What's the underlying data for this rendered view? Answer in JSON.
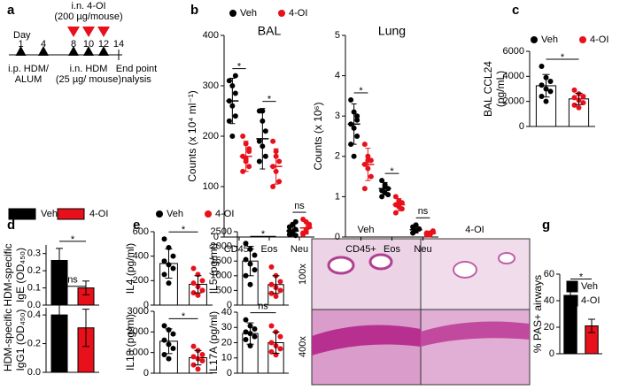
{
  "panel_labels": [
    "a",
    "b",
    "c",
    "d",
    "e",
    "f",
    "g"
  ],
  "timeline": {
    "day_label": "Day",
    "days": [
      1,
      4,
      8,
      10,
      12,
      14
    ],
    "treatment_top": [
      "i.n. 4-OI",
      "(200 µg/mouse)"
    ],
    "sensitization": [
      "i.p. HDM/",
      "ALUM"
    ],
    "challenge": [
      "i.n. HDM",
      "(25 µg/ mouse)"
    ],
    "endpoint": [
      "End point",
      "nalysis"
    ]
  },
  "histology": {
    "columns": [
      "Veh",
      "4-OI"
    ],
    "rows": [
      "100x",
      "400x"
    ]
  },
  "chart_data": [
    {
      "type": "dot",
      "title": "BAL",
      "ylabel": "Counts (x 10⁴ ml⁻¹)",
      "categories": [
        "CD45+",
        "Eos",
        "Neu"
      ],
      "ylim": [
        0,
        400
      ],
      "yticks": [
        0,
        100,
        200,
        300,
        400
      ],
      "legend": "top",
      "significance": [
        "*",
        "*",
        "ns"
      ],
      "series": [
        {
          "name": "Veh",
          "color": "#000000",
          "values": [
            270,
            195,
            12
          ],
          "errors": [
            45,
            60,
            10
          ],
          "points": [
            [
              310,
              300,
              285,
              270,
              260,
              240,
              230,
              200,
              320
            ],
            [
              250,
              230,
              210,
              190,
              180,
              160,
              150,
              250
            ],
            [
              5,
              10,
              15,
              20,
              8,
              3,
              12,
              25,
              30
            ]
          ]
        },
        {
          "name": "4-OI",
          "color": "#e8101a",
          "values": [
            160,
            140,
            18
          ],
          "errors": [
            30,
            35,
            12
          ],
          "points": [
            [
              200,
              185,
              170,
              160,
              150,
              140,
              130,
              155,
              175
            ],
            [
              190,
              170,
              150,
              140,
              130,
              110,
              100,
              160
            ],
            [
              5,
              15,
              25,
              35,
              10,
              20,
              8,
              30
            ]
          ]
        }
      ]
    },
    {
      "type": "dot",
      "title": "Lung",
      "ylabel": "Counts (x 10⁶)",
      "categories": [
        "CD45+",
        "Eos",
        "Neu"
      ],
      "ylim": [
        0,
        5
      ],
      "yticks": [
        0,
        1,
        2,
        3,
        4,
        5
      ],
      "significance": [
        "*",
        "*",
        "ns"
      ],
      "series": [
        {
          "color": "#000000",
          "values": [
            2.8,
            1.2,
            0.18
          ],
          "errors": [
            0.5,
            0.15,
            0.08
          ],
          "points": [
            [
              3.4,
              3.1,
              2.9,
              2.8,
              2.7,
              2.5,
              2.3,
              2.0,
              3.0
            ],
            [
              1.4,
              1.3,
              1.2,
              1.15,
              1.1,
              1.05,
              1.0,
              1.25
            ],
            [
              0.1,
              0.15,
              0.2,
              0.25,
              0.3,
              0.2,
              0.1,
              0.15
            ]
          ]
        },
        {
          "color": "#e8101a",
          "values": [
            1.8,
            0.8,
            0.09
          ],
          "errors": [
            0.4,
            0.15,
            0.04
          ],
          "points": [
            [
              2.3,
              2.0,
              1.9,
              1.8,
              1.7,
              1.5,
              1.2,
              1.9
            ],
            [
              1.0,
              0.9,
              0.85,
              0.8,
              0.75,
              0.7,
              0.6,
              0.85
            ],
            [
              0.05,
              0.1,
              0.15,
              0.1,
              0.08,
              0.12,
              0.1,
              0.05
            ]
          ]
        }
      ]
    },
    {
      "type": "dotbar",
      "ylabel": [
        "BAL CCL24",
        "(pg/mL)"
      ],
      "ylim": [
        0,
        6000
      ],
      "yticks": [
        0,
        2000,
        4000,
        6000
      ],
      "legend": "top",
      "significance": "*",
      "series": [
        {
          "name": "Veh",
          "color": "#000000",
          "value": 3250,
          "error": 900,
          "points": [
            4800,
            3900,
            3600,
            3300,
            3000,
            2800,
            2400,
            2000
          ]
        },
        {
          "name": "4-OI",
          "color": "#e8101a",
          "value": 2200,
          "error": 450,
          "points": [
            2900,
            2600,
            2400,
            2300,
            2100,
            1900,
            1700,
            1500
          ]
        }
      ]
    },
    {
      "type": "bar",
      "ylabel": [
        "HDM-specific",
        "IgE (OD₄₅₀)"
      ],
      "ylim": [
        0,
        0.35
      ],
      "yticks": [
        {
          "value": 0,
          "label": "0.0"
        },
        0.1,
        0.2,
        0.3
      ],
      "legend": "top",
      "significance": "*",
      "series": [
        {
          "name": "Veh",
          "color": "#000000",
          "value": 0.26,
          "error": 0.07
        },
        {
          "name": "4-OI",
          "color": "#e8101a",
          "value": 0.1,
          "error": 0.04
        }
      ]
    },
    {
      "type": "bar",
      "ylabel": [
        "HDM-specific",
        "IgG1 (OD₄₅₀)"
      ],
      "ylim": [
        0,
        0.45
      ],
      "yticks": [
        {
          "value": 0,
          "label": "0.0"
        },
        0.2,
        0.4
      ],
      "significance": "ns",
      "series": [
        {
          "color": "#000000",
          "value": 0.4,
          "error": 0.15
        },
        {
          "color": "#e8101a",
          "value": 0.31,
          "error": 0.13
        }
      ]
    },
    {
      "type": "dotbar",
      "ylabel": "IL4 (pg/ml)",
      "ylim": [
        0,
        600
      ],
      "yticks": [
        0,
        200,
        400,
        600
      ],
      "legend": "top",
      "significance": "*",
      "series": [
        {
          "name": "Veh",
          "color": "#000000",
          "value": 340,
          "error": 120,
          "points": [
            540,
            470,
            400,
            360,
            330,
            300,
            250,
            180
          ]
        },
        {
          "name": "4-OI",
          "color": "#e8101a",
          "value": 170,
          "error": 70,
          "points": [
            300,
            250,
            200,
            180,
            150,
            120,
            100,
            80
          ]
        }
      ]
    },
    {
      "type": "dotbar",
      "ylabel": "IL5 (pg/ml)",
      "ylim": [
        0,
        2500
      ],
      "yticks": [
        0,
        500,
        1000,
        1500,
        2000,
        2500
      ],
      "significance": "*",
      "series": [
        {
          "color": "#000000",
          "value": 1500,
          "error": 500,
          "points": [
            2100,
            1900,
            1700,
            1550,
            1400,
            1200,
            1000,
            700
          ]
        },
        {
          "color": "#e8101a",
          "value": 700,
          "error": 300,
          "points": [
            1300,
            1000,
            800,
            700,
            600,
            500,
            400,
            300
          ]
        }
      ]
    },
    {
      "type": "dotbar",
      "ylabel": "IL13 (pg/ml)",
      "ylim": [
        0,
        3000
      ],
      "yticks": [
        0,
        1000,
        2000,
        3000
      ],
      "significance": "*",
      "series": [
        {
          "color": "#000000",
          "value": 1550,
          "error": 600,
          "points": [
            2300,
            2100,
            1900,
            1600,
            1400,
            1200,
            900,
            700
          ]
        },
        {
          "color": "#e8101a",
          "value": 750,
          "error": 350,
          "points": [
            1300,
            1100,
            900,
            800,
            700,
            600,
            400,
            200
          ]
        }
      ]
    },
    {
      "type": "dotbar",
      "ylabel": "IL17A (pg/ml)",
      "ylim": [
        0,
        40
      ],
      "yticks": [
        0,
        10,
        20,
        30,
        40
      ],
      "significance": "ns",
      "series": [
        {
          "color": "#000000",
          "value": 26,
          "error": 7,
          "points": [
            35,
            31,
            29,
            27,
            26,
            24,
            22,
            18
          ]
        },
        {
          "color": "#e8101a",
          "value": 20,
          "error": 7,
          "points": [
            31,
            27,
            24,
            20,
            18,
            16,
            14,
            12
          ]
        }
      ]
    },
    {
      "type": "bar",
      "ylabel": "% PAS+ airways",
      "ylim": [
        0,
        60
      ],
      "yticks": [
        0,
        20,
        40,
        60
      ],
      "legend": "upper right",
      "significance": "*",
      "series": [
        {
          "name": "Veh",
          "color": "#000000",
          "value": 44,
          "error": 7
        },
        {
          "name": "4-OI",
          "color": "#e8101a",
          "value": 21,
          "error": 5
        }
      ]
    }
  ]
}
